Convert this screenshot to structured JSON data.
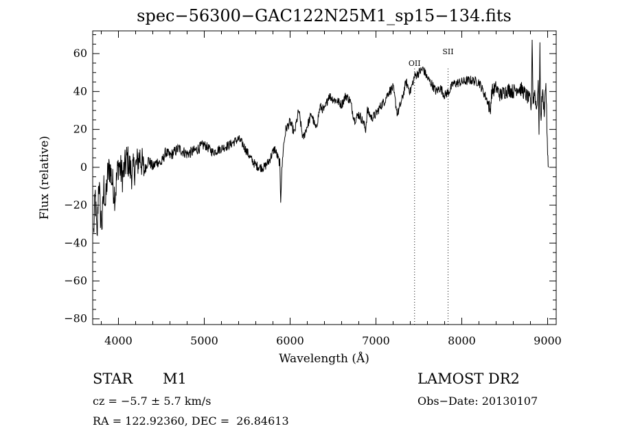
{
  "chart_data": {
    "type": "line",
    "title": "spec−56300−GAC122N25M1_sp15−134.fits",
    "xlabel": "Wavelength (Å)",
    "ylabel": "Flux (relative)",
    "xlim": [
      3700,
      9100
    ],
    "ylim": [
      -83,
      72
    ],
    "x_ticks": [
      4000,
      5000,
      6000,
      7000,
      8000,
      9000
    ],
    "x_tick_labels": [
      "4000",
      "5000",
      "6000",
      "7000",
      "8000",
      "9000"
    ],
    "y_ticks": [
      -80,
      -60,
      -40,
      -20,
      0,
      20,
      40,
      60
    ],
    "y_tick_labels": [
      "−80",
      "−60",
      "−40",
      "−20",
      "0",
      "20",
      "40",
      "60"
    ],
    "grid": false,
    "line_color": "#000000",
    "series": [
      {
        "x": [
          3710,
          3730,
          3750,
          3770,
          3790,
          3810,
          3830,
          3850,
          3870,
          3900,
          3930,
          3960,
          4000,
          4050,
          4100,
          4150,
          4200,
          4250,
          4300,
          4350,
          4400,
          4450,
          4500,
          4550,
          4600,
          4700,
          4800,
          4900,
          5000,
          5100,
          5200,
          5300,
          5400,
          5450,
          5500,
          5550,
          5600,
          5650,
          5700,
          5750,
          5800,
          5820,
          5850,
          5880,
          5890,
          5900,
          5920,
          5950,
          6000,
          6050,
          6100,
          6150,
          6200,
          6250,
          6300,
          6350,
          6400,
          6450,
          6500,
          6550,
          6600,
          6650,
          6700,
          6750,
          6800,
          6850,
          6880,
          6900,
          6950,
          7000,
          7050,
          7100,
          7150,
          7200,
          7250,
          7300,
          7350,
          7400,
          7450,
          7500,
          7550,
          7600,
          7650,
          7700,
          7750,
          7800,
          7850,
          7900,
          8000,
          8100,
          8200,
          8250,
          8300,
          8330,
          8350,
          8400,
          8450,
          8500,
          8550,
          8600,
          8650,
          8700,
          8750,
          8800,
          8810,
          8820,
          8830,
          8850,
          8870,
          8890,
          8900,
          8910,
          8920,
          8940,
          8960,
          8980,
          9000,
          9010
        ],
        "y": [
          -35,
          -15,
          -40,
          -5,
          -25,
          -30,
          -10,
          -20,
          -5,
          0,
          -8,
          -15,
          2,
          -5,
          5,
          -3,
          0,
          6,
          -2,
          4,
          0,
          3,
          2,
          8,
          6,
          10,
          7,
          9,
          12,
          8,
          10,
          12,
          15,
          12,
          8,
          4,
          1,
          0,
          0,
          3,
          8,
          10,
          6,
          2,
          -17,
          -5,
          10,
          20,
          24,
          18,
          30,
          15,
          22,
          28,
          20,
          32,
          30,
          38,
          36,
          35,
          33,
          38,
          35,
          25,
          28,
          24,
          20,
          30,
          26,
          28,
          32,
          35,
          40,
          42,
          28,
          35,
          45,
          40,
          48,
          50,
          52,
          47,
          44,
          40,
          42,
          38,
          40,
          44,
          45,
          46,
          45,
          40,
          35,
          30,
          40,
          42,
          38,
          40,
          41,
          40,
          42,
          41,
          38,
          35,
          30,
          70,
          35,
          40,
          30,
          45,
          20,
          62,
          25,
          40,
          30,
          45,
          5,
          0
        ],
        "name": ""
      }
    ],
    "annotations": [
      {
        "label": "OII",
        "x": 7450
      },
      {
        "label": "SII",
        "x": 7840
      }
    ]
  },
  "info": {
    "object_class": "STAR",
    "subclass": "M1",
    "cz": "cz = −5.7 ± 5.7 km/s",
    "radec": "RA = 122.92360, DEC =  26.84613",
    "survey": "LAMOST DR2",
    "obs_date": "Obs−Date: 20130107"
  }
}
